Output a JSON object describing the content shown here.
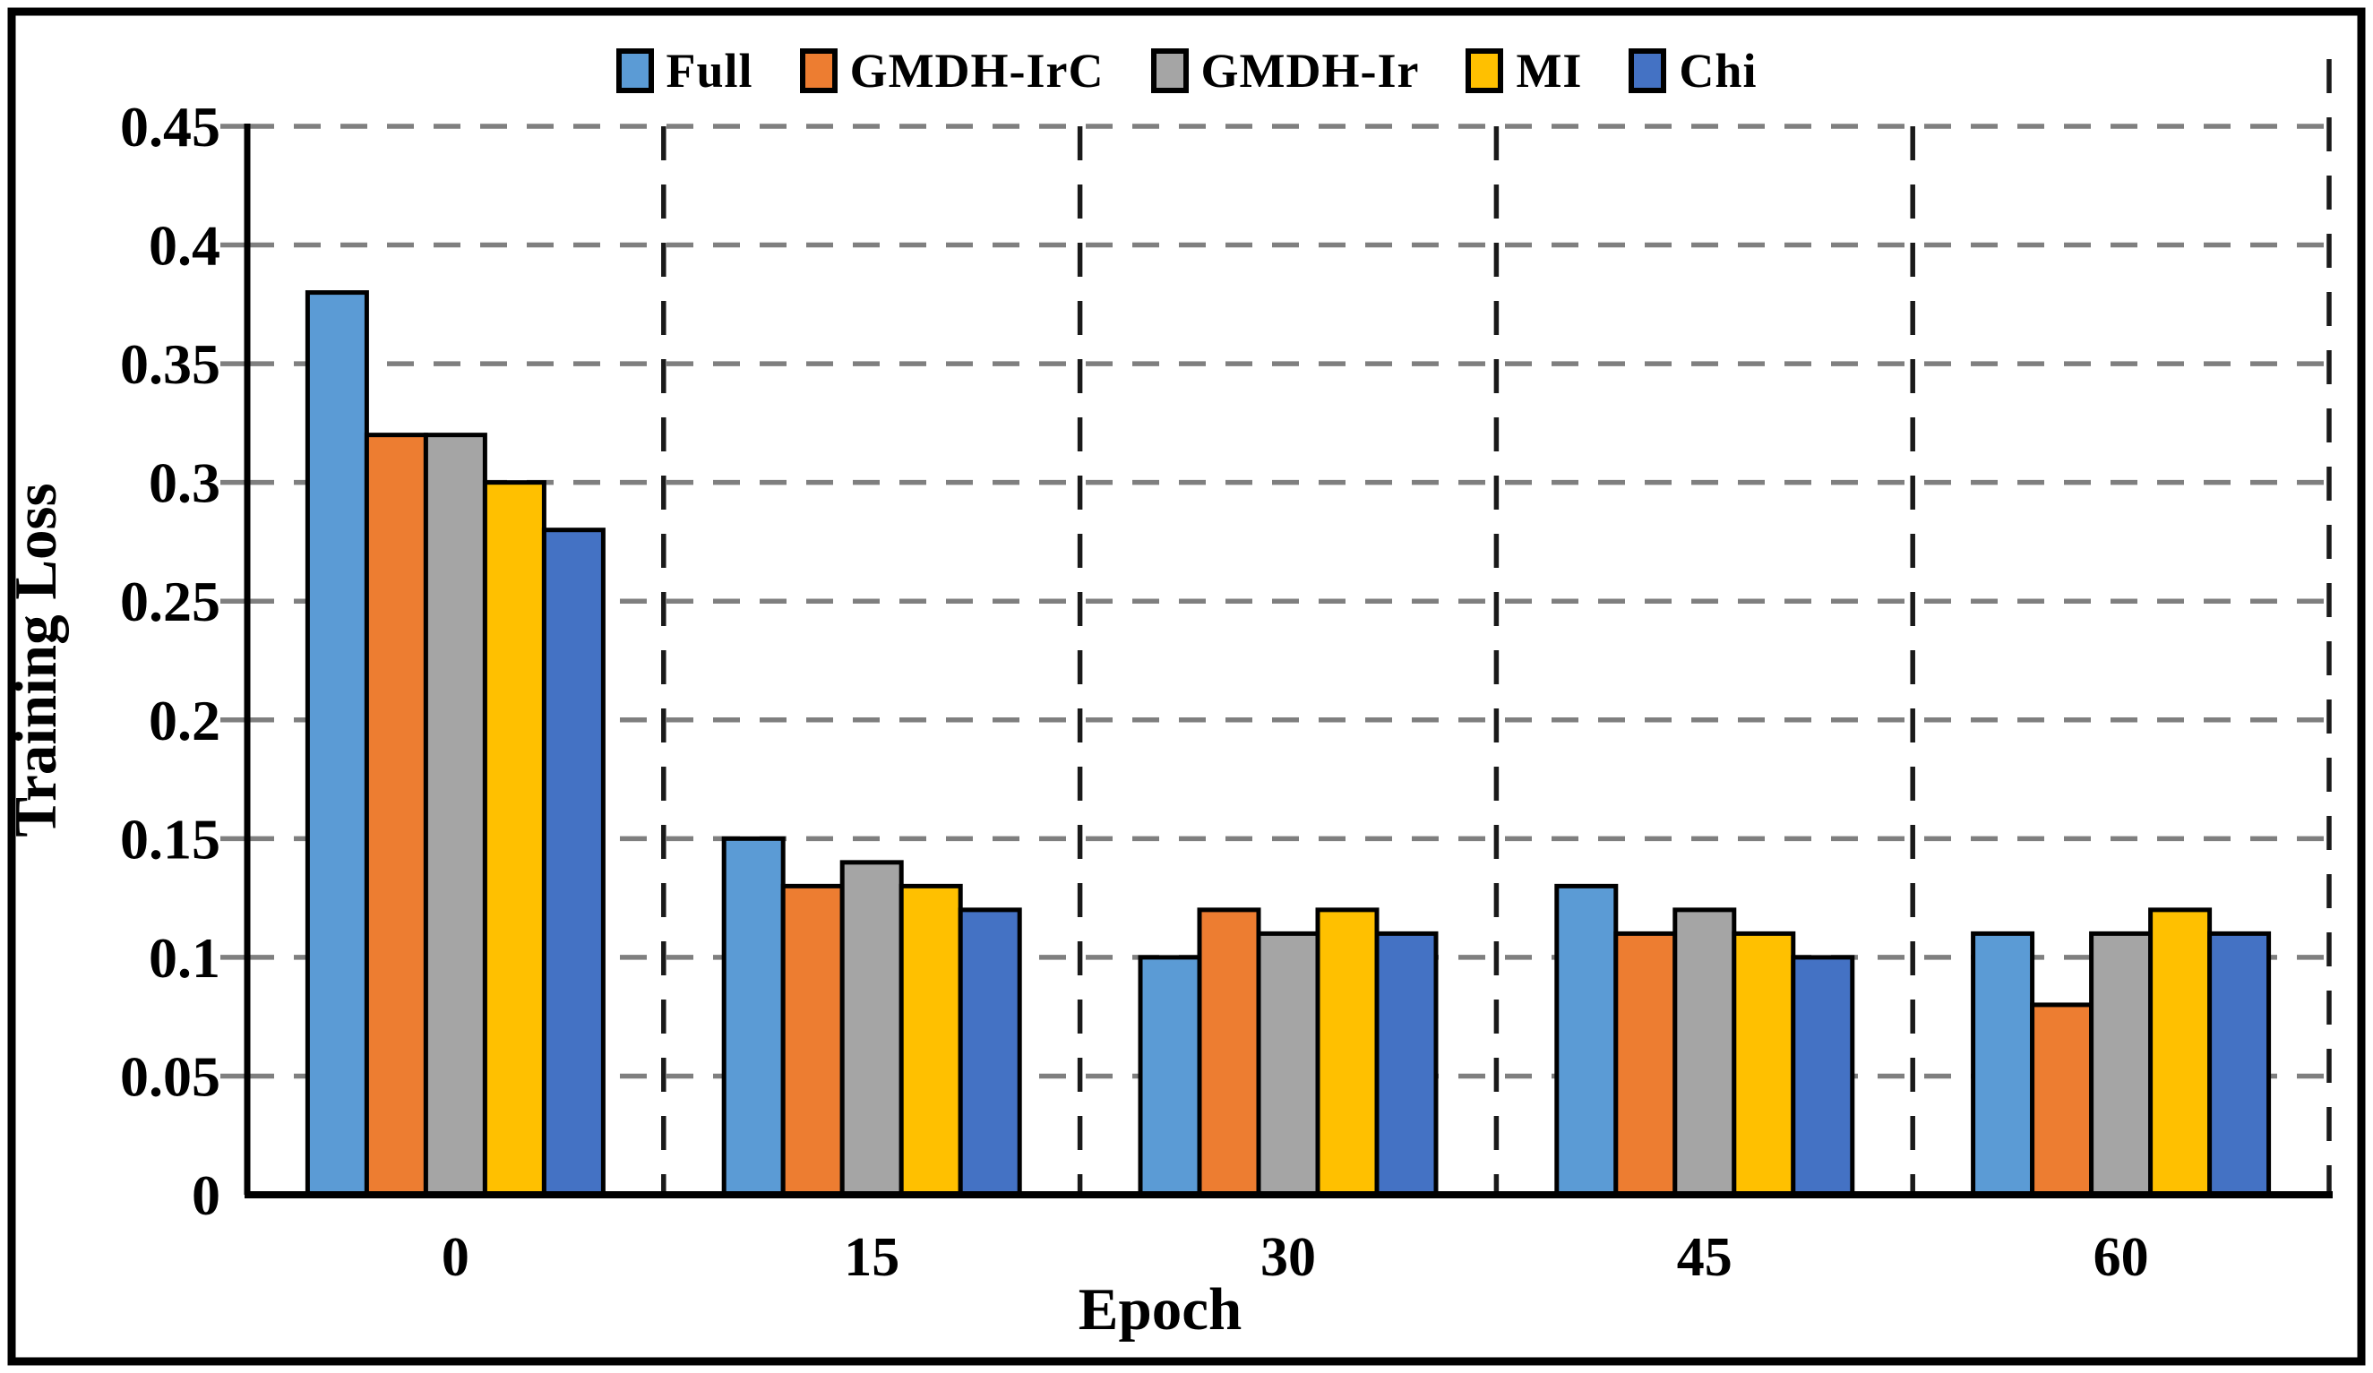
{
  "chart_data": {
    "type": "bar",
    "title": "",
    "xlabel": "Epoch",
    "ylabel": "Training Loss",
    "categories": [
      "0",
      "15",
      "30",
      "45",
      "60"
    ],
    "series": [
      {
        "name": "Full",
        "color": "#5B9BD5",
        "values": [
          0.38,
          0.15,
          0.1,
          0.13,
          0.11
        ]
      },
      {
        "name": "GMDH-IrC",
        "color": "#ED7D31",
        "values": [
          0.32,
          0.13,
          0.12,
          0.11,
          0.08
        ]
      },
      {
        "name": "GMDH-Ir",
        "color": "#A5A5A5",
        "values": [
          0.32,
          0.14,
          0.11,
          0.12,
          0.11
        ]
      },
      {
        "name": "MI",
        "color": "#FFC000",
        "values": [
          0.3,
          0.13,
          0.12,
          0.11,
          0.12
        ]
      },
      {
        "name": "Chi",
        "color": "#4472C4",
        "values": [
          0.28,
          0.12,
          0.11,
          0.1,
          0.11
        ]
      }
    ],
    "ylim": [
      0,
      0.45
    ],
    "ytick_step": 0.05,
    "ytick_labels": [
      "0",
      "0.05",
      "0.1",
      "0.15",
      "0.2",
      "0.25",
      "0.3",
      "0.35",
      "0.4",
      "0.45"
    ],
    "legend_position": "top",
    "grid": "horizontal dashed gray, vertical dashed black group separators",
    "colors": {
      "bar_outline": "#000000",
      "gridline": "#7F7F7F",
      "separator": "#1A1A1A",
      "axis": "#000000",
      "frame": "#000000"
    }
  }
}
